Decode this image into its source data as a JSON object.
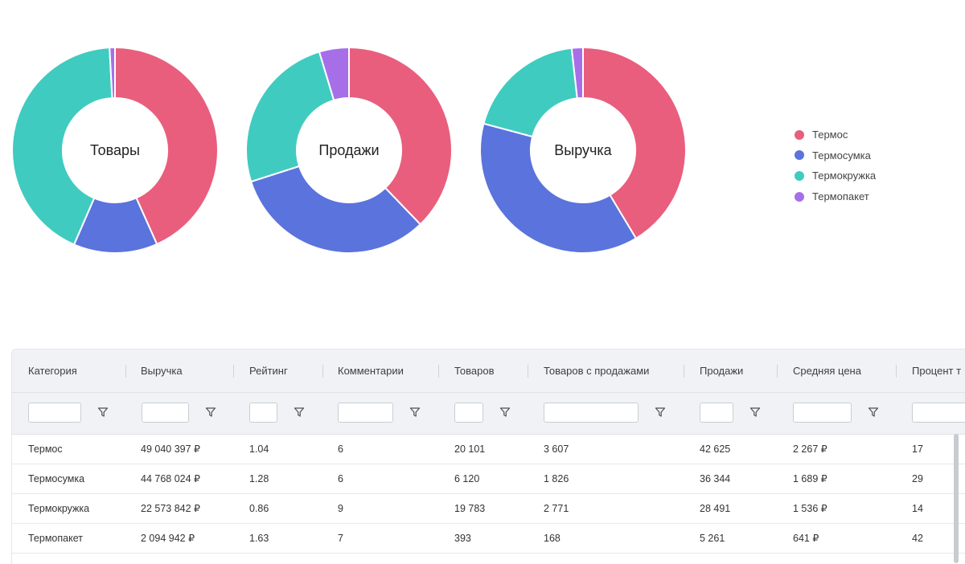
{
  "chart_data": [
    {
      "type": "pie",
      "variant": "donut",
      "title": "Товары",
      "categories": [
        "Термос",
        "Термосумка",
        "Термокружка",
        "Термопакет"
      ],
      "values": [
        20101,
        6120,
        19783,
        393
      ]
    },
    {
      "type": "pie",
      "variant": "donut",
      "title": "Продажи",
      "categories": [
        "Термос",
        "Термосумка",
        "Термокружка",
        "Термопакет"
      ],
      "values": [
        42625,
        36344,
        28491,
        5261
      ]
    },
    {
      "type": "pie",
      "variant": "donut",
      "title": "Выручка",
      "categories": [
        "Термос",
        "Термосумка",
        "Термокружка",
        "Термопакет"
      ],
      "values": [
        49040397,
        44768024,
        22573842,
        2094942
      ]
    }
  ],
  "legend": [
    {
      "label": "Термос",
      "color": "#e95e7d"
    },
    {
      "label": "Термосумка",
      "color": "#5a73dd"
    },
    {
      "label": "Термокружка",
      "color": "#40cbc0"
    },
    {
      "label": "Термопакет",
      "color": "#a66fe8"
    }
  ],
  "table": {
    "columns": [
      "Категория",
      "Выручка",
      "Рейтинг",
      "Комментарии",
      "Товаров",
      "Товаров с продажами",
      "Продажи",
      "Средняя цена",
      "Процент т"
    ],
    "rows": [
      [
        "Термос",
        "49 040 397 ₽",
        "1.04",
        "6",
        "20 101",
        "3 607",
        "42 625",
        "2 267 ₽",
        "17"
      ],
      [
        "Термосумка",
        "44 768 024 ₽",
        "1.28",
        "6",
        "6 120",
        "1 826",
        "36 344",
        "1 689 ₽",
        "29"
      ],
      [
        "Термокружка",
        "22 573 842 ₽",
        "0.86",
        "9",
        "19 783",
        "2 771",
        "28 491",
        "1 536 ₽",
        "14"
      ],
      [
        "Термопакет",
        "2 094 942 ₽",
        "1.63",
        "7",
        "393",
        "168",
        "5 261",
        "641 ₽",
        "42"
      ]
    ]
  }
}
